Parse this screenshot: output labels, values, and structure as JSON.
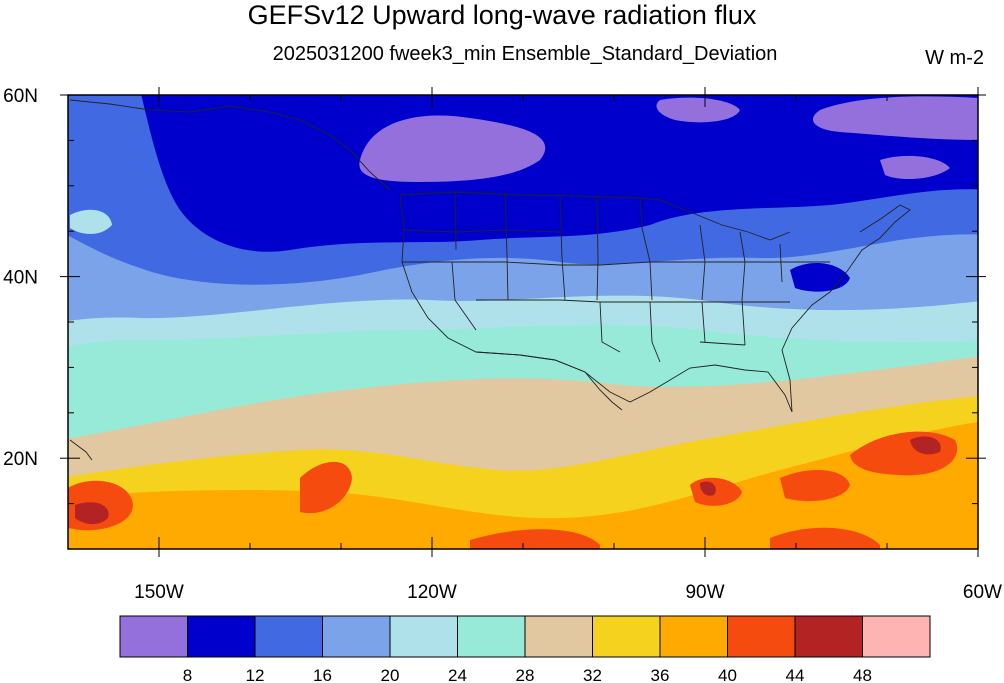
{
  "header": {
    "title": "GEFSv12 Upward long-wave radiation flux",
    "subtitle": "2025031200 fweek3_min Ensemble_Standard_Deviation",
    "units": "W m-2"
  },
  "map": {
    "lon_range": [
      -160,
      -60
    ],
    "lat_range": [
      10,
      60
    ],
    "x_ticks": [
      {
        "lon": -150,
        "label": "150W"
      },
      {
        "lon": -120,
        "label": "120W"
      },
      {
        "lon": -90,
        "label": "90W"
      },
      {
        "lon": -60,
        "label": "60W"
      }
    ],
    "y_ticks": [
      {
        "lat": 60,
        "label": "60N"
      },
      {
        "lat": 40,
        "label": "40N"
      },
      {
        "lat": 20,
        "label": "20N"
      }
    ]
  },
  "colorbar": {
    "labels": [
      "8",
      "12",
      "16",
      "20",
      "24",
      "28",
      "32",
      "36",
      "40",
      "44",
      "48"
    ],
    "colors": [
      "#9370db",
      "#0000cd",
      "#4169e1",
      "#7ba3ea",
      "#afe1ea",
      "#96ead7",
      "#e1c8a0",
      "#f5d21e",
      "#ffaa00",
      "#f54b0f",
      "#b42323",
      "#ffb4b4"
    ]
  }
}
